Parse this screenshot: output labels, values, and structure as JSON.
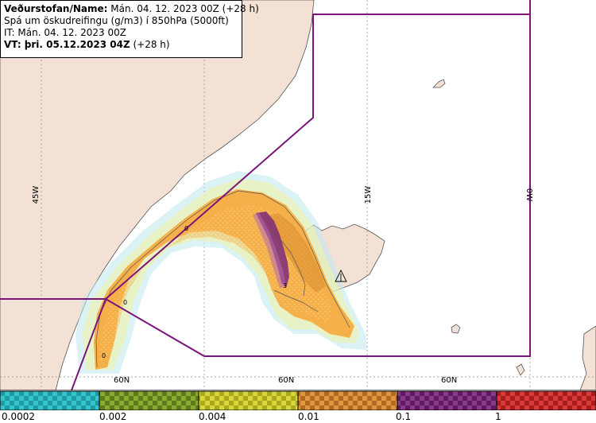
{
  "header": {
    "line1_label": "Veðurstofan/Name:",
    "line1_value": "Mán. 04. 12. 2023 00Z (+28 h)",
    "line2": "Spá um öskudreifingu (g/m3) í 850hPa (5000ft)",
    "line3": "IT: Mán. 04. 12. 2023 00Z",
    "line4_label": "VT: þri. 05.12.2023 04Z",
    "line4_value": "(+28 h)"
  },
  "map": {
    "meridian_labels": [
      "45W",
      "15W",
      "0W"
    ],
    "parallel_labels": [
      "60N",
      "60N",
      "60N"
    ],
    "contour_labels": [
      "0",
      "0",
      "0",
      "3"
    ],
    "colors": {
      "land": "#f2e1d4",
      "sea": "#ffffff",
      "coast": "#555555",
      "grid": "#888888",
      "boundary": "#7b147b",
      "ash_low": "#f5b04a",
      "ash_mid": "#d88a2e",
      "ash_high": "#7a2a7a",
      "ash_trace": "#bfe9ef",
      "ash_trace2": "#eef3a8"
    }
  },
  "legend": {
    "labels": [
      "0.0002",
      "0.002",
      "0.004",
      "0.01",
      "0.1",
      "1"
    ],
    "colors": [
      "#33c4cc",
      "#7a9a28",
      "#c8c62a",
      "#cf8630",
      "#7a2a7a",
      "#c8282a"
    ]
  }
}
